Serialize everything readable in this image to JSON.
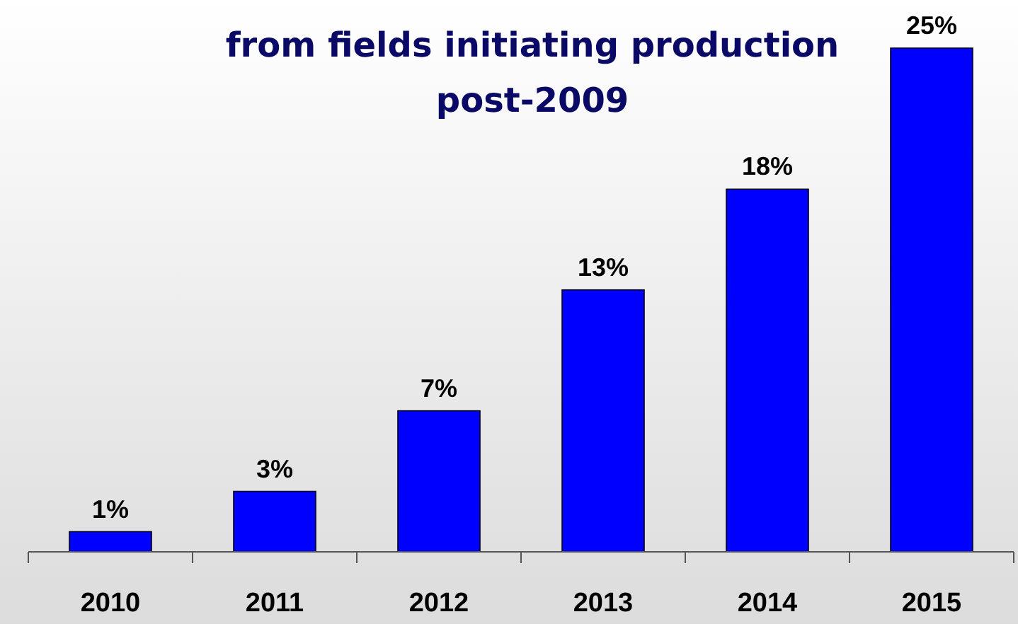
{
  "chart_data": {
    "type": "bar",
    "title": "from fields initiating production\npost-2009",
    "categories": [
      "2010",
      "2011",
      "2012",
      "2013",
      "2014",
      "2015"
    ],
    "values": [
      1,
      3,
      7,
      13,
      18,
      25
    ],
    "value_labels": [
      "1%",
      "3%",
      "7%",
      "13%",
      "18%",
      "25%"
    ],
    "color": "#0000ff"
  }
}
